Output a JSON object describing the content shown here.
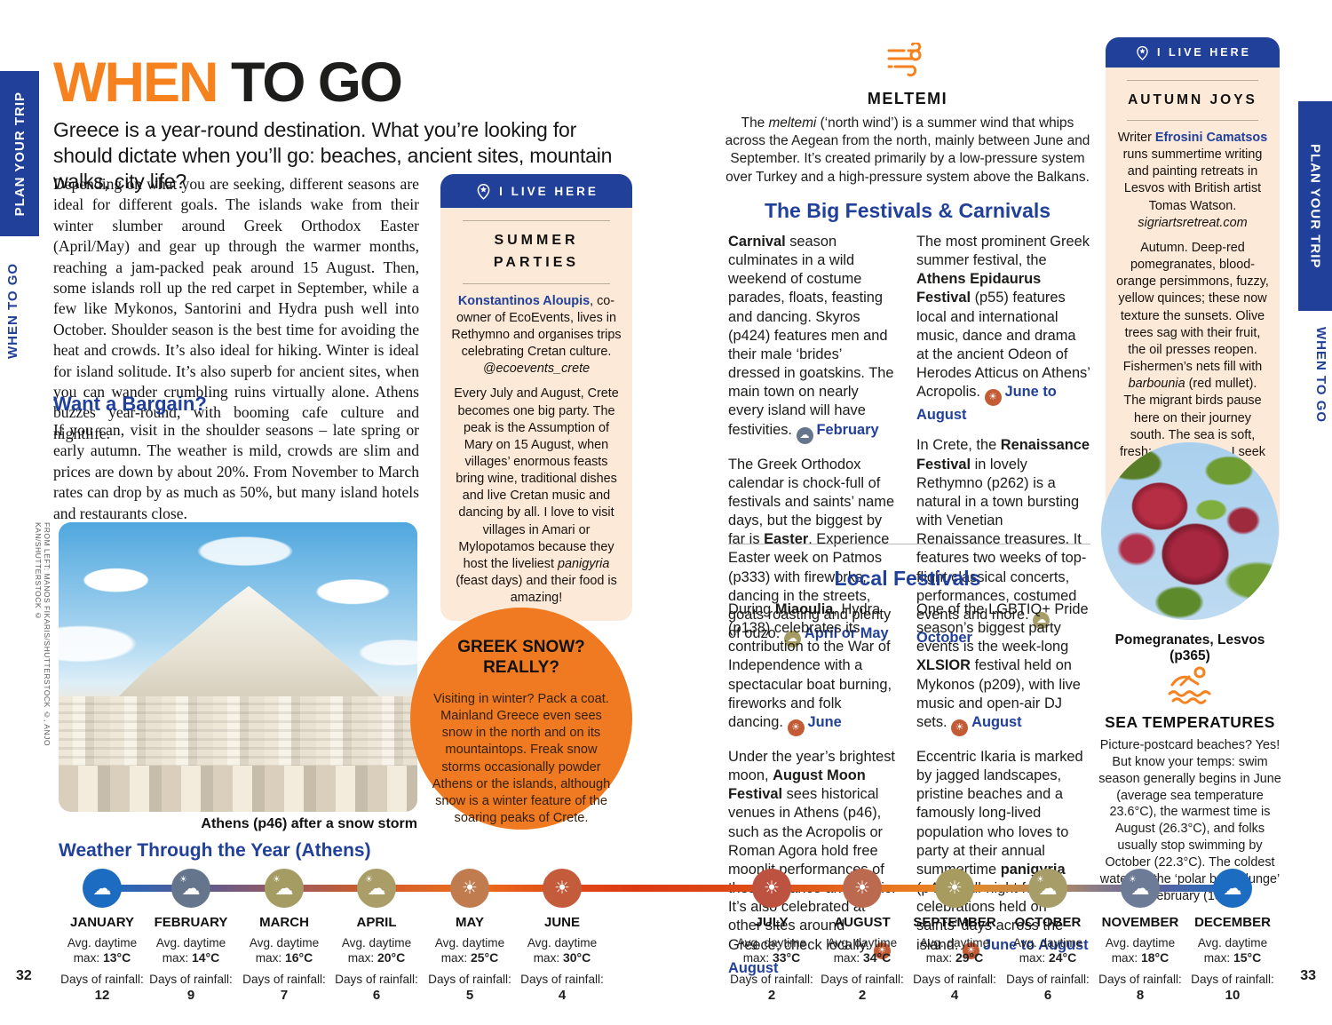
{
  "colors": {
    "blue": "#21409A",
    "orange": "#F5821F",
    "circle_orange": "#EF7A21",
    "cream": "#FCE9D8",
    "cal_winter": "#65758b",
    "cal_khaki": "#a59c63",
    "cal_sun": "#c35b35",
    "cal_olive": "#a79d69"
  },
  "rails": {
    "plan": "PLAN YOUR TRIP",
    "section": "WHEN TO GO",
    "page_left": "32",
    "page_right": "33"
  },
  "header": {
    "title_accent": "WHEN",
    "title_rest": " TO GO",
    "lede": "Greece is a year-round destination. What you’re looking for should dictate when you’ll go: beaches, ancient sites, mountain walks, city life?"
  },
  "intro": "Depending on what you are seeking, different seasons are ideal for different goals. The islands wake from their winter slumber around Greek Orthodox Easter (April/May) and gear up through the warmer months, reaching a jam-packed peak around 15 August. Then, some islands roll up the red carpet in September, while a few like Mykonos, Santorini and Hydra push well into October. Shoulder season is the best time for avoiding the heat and crowds. It’s also ideal for hiking. Winter is ideal for island solitude. It’s also superb for ancient sites, when you can wander crumbling ruins virtually alone. Athens buzzes year-round, with booming cafe culture and nightlife.",
  "bargain": {
    "heading": "Want a Bargain?",
    "body": "If you can, visit in the shoulder seasons – late spring or early autumn. The weather is mild, crowds are slim and prices are down by about 20%. From November to March rates can drop by as much as 50%, but many island hotels and restaurants close."
  },
  "photo": {
    "credit": "FROM LEFT: MANOS FIKARIS/SHUTTERSTOCK ©, ANJO KAN/SHUTTERSTOCK ©",
    "caption": "Athens (p46) after a snow storm"
  },
  "live_here_label": "I LIVE HERE",
  "summer_box": {
    "title": "SUMMER PARTIES",
    "p1": [
      {
        "t": "Konstantinos Aloupis",
        "b": true,
        "c": "blue"
      },
      {
        "t": ", co-owner of EcoEvents, lives in Rethymno and organises trips celebrating Cretan culture. "
      },
      {
        "t": "@ecoevents_crete",
        "i": true
      }
    ],
    "p2": [
      {
        "t": "Every July and August, Crete becomes one big party. The peak is the Assumption of Mary on 15 August, when villages’ enormous feasts bring wine, traditional dishes and live Cretan music and dancing by all. I love to visit villages in Amari or Mylopotamos because they host the liveliest "
      },
      {
        "t": "panigyria",
        "i": true
      },
      {
        "t": " (feast days) and their food is amazing!"
      }
    ]
  },
  "snow_circle": {
    "title": "GREEK SNOW? REALLY?",
    "body": "Visiting in winter? Pack a coat. Mainland Greece even sees snow in the north and on its mountaintops. Freak snow storms occasionally powder Athens or the islands, although snow is a winter feature of the soaring peaks of Crete."
  },
  "meltemi": {
    "title": "MELTEMI",
    "body": [
      {
        "t": "The "
      },
      {
        "t": "meltemi",
        "i": true
      },
      {
        "t": " (‘north wind’) is a summer wind that whips across the Aegean from the north, mainly between June and September. It’s created primarily by a low-pressure system over Turkey and a high-pressure system above the Balkans."
      }
    ]
  },
  "big_festivals": {
    "heading": "The Big Festivals & Carnivals",
    "col1": [
      [
        {
          "t": "Carnival",
          "b": true
        },
        {
          "t": " season culminates in a wild weekend of costume parades, floats, feasting and dancing. Skyros (p424) features men and their male ‘brides’ dressed in goatskins. The main town on nearly every island will have festivities. "
        },
        {
          "icon": "cloud",
          "color": "#65758b",
          "name": "february-calendar"
        },
        {
          "t": "February",
          "b": true,
          "c": "blue"
        }
      ],
      [
        {
          "t": "The Greek Orthodox calendar is chock-full of festivals and saints’ name days, but the biggest by far is "
        },
        {
          "t": "Easter",
          "b": true
        },
        {
          "t": ". Experience Easter week on Patmos (p333) with fireworks, dancing in the streets, goats roasting and plenty of ouzo. "
        },
        {
          "icon": "cloud",
          "color": "#a59c63",
          "name": "april-may-calendar"
        },
        {
          "t": "April or May",
          "b": true,
          "c": "blue"
        }
      ]
    ],
    "col2": [
      [
        {
          "t": "The most prominent Greek summer festival, the "
        },
        {
          "t": "Athens Epidaurus Festival",
          "b": true
        },
        {
          "t": " (p55) features local and international music, dance and drama at the ancient Odeon of Herodes Atticus on Athens’ Acropolis. "
        },
        {
          "icon": "sun",
          "color": "#c35b35",
          "name": "june-august-calendar"
        },
        {
          "t": "June to August",
          "b": true,
          "c": "blue"
        }
      ],
      [
        {
          "t": "In Crete, the "
        },
        {
          "t": "Renaissance Festival",
          "b": true
        },
        {
          "t": " in lovely Rethymno (p262) is a natural in a town bursting with Venetian Renaissance treasures. It features two weeks of top-flight classical concerts, performances, costumed events and more. "
        },
        {
          "icon": "cloud",
          "color": "#a79d69",
          "name": "october-calendar"
        },
        {
          "t": "October",
          "b": true,
          "c": "blue"
        }
      ]
    ]
  },
  "local_festivals": {
    "heading": "Local Festivals",
    "col1": [
      [
        {
          "t": "During "
        },
        {
          "t": "Miaoulia",
          "b": true
        },
        {
          "t": ", Hydra (p138) celebrates its contribution to the War of Independence with a spectacular boat burning, fireworks and folk dancing. "
        },
        {
          "icon": "sun",
          "color": "#c35b35",
          "name": "june-calendar"
        },
        {
          "t": "June",
          "b": true,
          "c": "blue"
        }
      ],
      [
        {
          "t": "Under the year’s brightest moon, "
        },
        {
          "t": "August Moon Festival",
          "b": true
        },
        {
          "t": " sees historical venues in Athens (p46), such as the Acropolis or Roman Agora hold free moonlit performances of theatre, dance and music. It’s also celebrated at other sites around Greece; check locally. "
        },
        {
          "icon": "sun",
          "color": "#c35b35",
          "name": "august-calendar"
        },
        {
          "t": "August",
          "b": true,
          "c": "blue"
        }
      ]
    ],
    "col2": [
      [
        {
          "t": "One of the LGBTIQ+ Pride season’s biggest party events is the week-long "
        },
        {
          "t": "XLSIOR",
          "b": true
        },
        {
          "t": " festival held on Mykonos (p209), with live music and open-air DJ sets. "
        },
        {
          "icon": "sun",
          "color": "#c35b35",
          "name": "august-calendar"
        },
        {
          "t": "August",
          "b": true,
          "c": "blue"
        }
      ],
      [
        {
          "t": "Eccentric Ikaria is marked by jagged landscapes, pristine beaches and a famously long-lived population who loves to party at their annual summertime "
        },
        {
          "t": "panigyria",
          "b": true
        },
        {
          "t": " (p401), all-night festival celebrations held on saints’ days across the island. "
        },
        {
          "icon": "sun",
          "color": "#c35b35",
          "name": "june-august-calendar"
        },
        {
          "t": "June to August",
          "b": true,
          "c": "blue"
        }
      ]
    ]
  },
  "autumn_box": {
    "title": "AUTUMN JOYS",
    "p1": [
      {
        "t": "Writer "
      },
      {
        "t": "Efrosini Camatsos",
        "b": true,
        "c": "blue"
      },
      {
        "t": " runs summertime writing and painting retreats in Lesvos with British artist Tomas Watson. "
      },
      {
        "t": "sigriartsretreat.com",
        "i": true
      }
    ],
    "p2": [
      {
        "t": "Autumn. Deep-red pomegranates, blood-orange persimmons, fuzzy, yellow quinces; these now texture the sunsets. Olive trees sag with their fruit, the oil presses reopen. Fishermen’s nets fill with "
      },
      {
        "t": "barbounia",
        "i": true
      },
      {
        "t": " (red mullet). The migrant birds pause here on their journey south. The sea is soft, fresh; after a swim, I seek the sun for its gentle warmth."
      }
    ]
  },
  "pom_caption": "Pomegranates, Lesvos (p365)",
  "sea": {
    "title": "SEA TEMPERATURES",
    "body": "Picture-postcard beaches? Yes! But know your temps: swim season generally begins in June (average sea temperature 23.6°C), the warmest time is August (26.3°C), and folks usually stop swimming by October (22.3°C). The coldest water for the ‘polar bear plunge’ is February (15°C)."
  },
  "weather": {
    "heading": "Weather Through the Year (Athens)",
    "avg_label": "Avg. daytime",
    "max_label": "max:",
    "rain_label": "Days of rainfall:",
    "months": [
      {
        "name": "JANUARY",
        "max": "13°C",
        "rain": "12",
        "color": "#1c6cc2",
        "icon": "cloud"
      },
      {
        "name": "FEBRUARY",
        "max": "14°C",
        "rain": "9",
        "color": "#65758b",
        "icon": "cloud-sun"
      },
      {
        "name": "MARCH",
        "max": "16°C",
        "rain": "7",
        "color": "#a59c63",
        "icon": "cloud-sun"
      },
      {
        "name": "APRIL",
        "max": "20°C",
        "rain": "6",
        "color": "#ab9d68",
        "icon": "cloud-sun"
      },
      {
        "name": "MAY",
        "max": "25°C",
        "rain": "5",
        "color": "#c07c4e",
        "icon": "sun"
      },
      {
        "name": "JUNE",
        "max": "30°C",
        "rain": "4",
        "color": "#c45c3c",
        "icon": "sun"
      },
      {
        "name": "JULY",
        "max": "33°C",
        "rain": "2",
        "color": "#bc523f",
        "icon": "sun"
      },
      {
        "name": "AUGUST",
        "max": "34°C",
        "rain": "2",
        "color": "#bc6a4f",
        "icon": "sun"
      },
      {
        "name": "SEPTEMBER",
        "max": "29°C",
        "rain": "4",
        "color": "#a79b5f",
        "icon": "sun"
      },
      {
        "name": "OCTOBER",
        "max": "24°C",
        "rain": "6",
        "color": "#a79d69",
        "icon": "cloud-sun"
      },
      {
        "name": "NOVEMBER",
        "max": "18°C",
        "rain": "8",
        "color": "#6d7b97",
        "icon": "cloud-sun"
      },
      {
        "name": "DECEMBER",
        "max": "15°C",
        "rain": "10",
        "color": "#1c6cc2",
        "icon": "cloud"
      }
    ]
  }
}
